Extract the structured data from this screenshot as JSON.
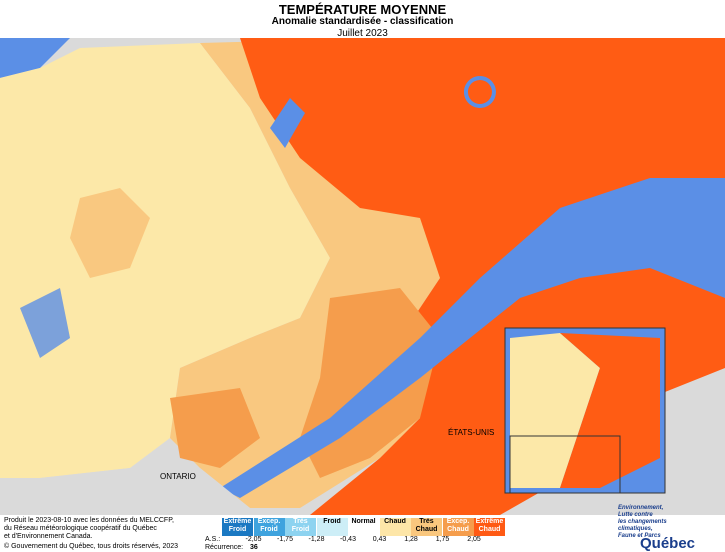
{
  "header": {
    "title": "TEMPÉRATURE MOYENNE",
    "subtitle": "Anomalie standardisée - classification",
    "period": "Juillet 2023"
  },
  "map_labels": {
    "ontario": "ONTARIO",
    "usa": "ÉTATS-UNIS"
  },
  "legend": {
    "classes": [
      {
        "label": "Extrême Froid",
        "color": "#1a78c2"
      },
      {
        "label": "Excep. Froid",
        "color": "#3fa3de"
      },
      {
        "label": "Très Froid",
        "color": "#8dd3f0"
      },
      {
        "label": "Froid",
        "color": "#cdeef7"
      },
      {
        "label": "Normal",
        "color": "#ffffff"
      },
      {
        "label": "Chaud",
        "color": "#fde6a8"
      },
      {
        "label": "Très Chaud",
        "color": "#f9c77e"
      },
      {
        "label": "Excep. Chaud",
        "color": "#f59d4c"
      },
      {
        "label": "Extrême Chaud",
        "color": "#ff5a14"
      }
    ],
    "thresholds": [
      "-2,05",
      "-1,75",
      "-1,28",
      "-0,43",
      "0,43",
      "1,28",
      "1,75",
      "2,05"
    ],
    "as_label": "A.S.:",
    "recurrence_label": "Récurrence:",
    "recurrence_value": "36"
  },
  "credits": {
    "source": [
      "Produit le 2023-08-10 avec les données du MELCCFP,",
      "du Réseau météorologique coopératif du Québec",
      "et d'Environnement Canada."
    ],
    "copyright": "© Gouvernement du Québec, tous droits réservés, 2023"
  },
  "logo": {
    "ministry": [
      "Environnement,",
      "Lutte contre",
      "les changements",
      "climatiques,",
      "Faune et Parcs"
    ],
    "name": "Québec"
  }
}
